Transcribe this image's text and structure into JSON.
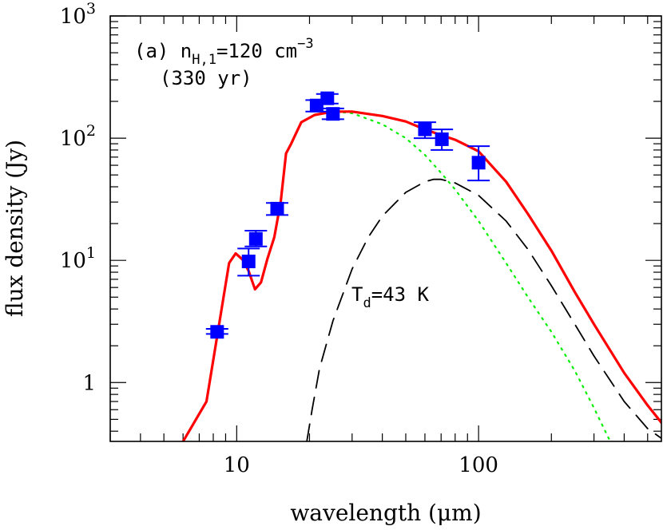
{
  "chart_data": {
    "type": "scatter",
    "xscale": "log",
    "yscale": "log",
    "xlim": [
      3,
      570
    ],
    "ylim": [
      0.33,
      1000
    ],
    "xlabel": "wavelength (μm)",
    "ylabel": "flux density (Jy)",
    "x_ticks": [
      {
        "value": 10,
        "label": "10"
      },
      {
        "value": 100,
        "label": "100"
      }
    ],
    "y_ticks": [
      {
        "value": 1,
        "label": "1"
      },
      {
        "value": 10,
        "label": "10",
        "exp": "1"
      },
      {
        "value": 100,
        "label": "10",
        "exp": "2"
      },
      {
        "value": 1000,
        "label": "10",
        "exp": "3"
      }
    ],
    "annotations": {
      "panel": {
        "prefix": "(a) n",
        "sub": "H,1",
        "mid": "=120 cm",
        "sup": "−3"
      },
      "age": "(330 yr)",
      "dust_temp": {
        "prefix": "T",
        "sub": "d",
        "rest": "=43 K"
      }
    },
    "series": [
      {
        "style": "points",
        "color": "#0000ff",
        "points": [
          {
            "x": 8.3,
            "y": 2.6,
            "ylo": 2.5,
            "yhi": 2.75
          },
          {
            "x": 11.2,
            "y": 9.8,
            "ylo": 7.5,
            "yhi": 12.5
          },
          {
            "x": 12.0,
            "y": 15,
            "ylo": 13,
            "yhi": 17.5
          },
          {
            "x": 14.7,
            "y": 26.5,
            "ylo": 23.5,
            "yhi": 29.5
          },
          {
            "x": 21.4,
            "y": 185,
            "ylo": 165,
            "yhi": 205
          },
          {
            "x": 23.7,
            "y": 212,
            "ylo": 192,
            "yhi": 230
          },
          {
            "x": 25.0,
            "y": 158,
            "ylo": 143,
            "yhi": 175
          },
          {
            "x": 60,
            "y": 118,
            "ylo": 100,
            "yhi": 135
          },
          {
            "x": 70.5,
            "y": 98,
            "ylo": 80,
            "yhi": 118
          },
          {
            "x": 100,
            "y": 63,
            "ylo": 45,
            "yhi": 86
          }
        ]
      },
      {
        "style": "solid",
        "color": "#ff0000",
        "points": [
          [
            6.0,
            0.33
          ],
          [
            7.5,
            0.7
          ],
          [
            8.5,
            3.2
          ],
          [
            9.3,
            9.5
          ],
          [
            9.9,
            11.4
          ],
          [
            10.6,
            10.1
          ],
          [
            11.2,
            8.2
          ],
          [
            11.9,
            5.8
          ],
          [
            12.6,
            6.6
          ],
          [
            13.4,
            10.3
          ],
          [
            14.3,
            15.5
          ],
          [
            15.2,
            30
          ],
          [
            16.0,
            75
          ],
          [
            16.8,
            90
          ],
          [
            18.5,
            135
          ],
          [
            21.0,
            155
          ],
          [
            25.0,
            165
          ],
          [
            30.0,
            165
          ],
          [
            40.0,
            152
          ],
          [
            50.0,
            137
          ],
          [
            60.0,
            118
          ],
          [
            70.0,
            106
          ],
          [
            80.0,
            97
          ],
          [
            100.0,
            78
          ],
          [
            130.0,
            44
          ],
          [
            160.0,
            24
          ],
          [
            200.0,
            12
          ],
          [
            250.0,
            5.5
          ],
          [
            300.0,
            3.0
          ],
          [
            400.0,
            1.2
          ],
          [
            500.0,
            0.65
          ],
          [
            570.0,
            0.47
          ]
        ]
      },
      {
        "style": "dotted",
        "color": "#00ee00",
        "points": [
          [
            6.0,
            0.33
          ],
          [
            7.5,
            0.7
          ],
          [
            8.5,
            3.2
          ],
          [
            9.3,
            9.5
          ],
          [
            9.9,
            11.4
          ],
          [
            10.6,
            10.1
          ],
          [
            11.2,
            8.2
          ],
          [
            11.9,
            5.8
          ],
          [
            12.6,
            6.6
          ],
          [
            13.4,
            10.3
          ],
          [
            14.3,
            15.5
          ],
          [
            15.2,
            30
          ],
          [
            16.0,
            75
          ],
          [
            16.8,
            90
          ],
          [
            18.5,
            135
          ],
          [
            21.0,
            155
          ],
          [
            25.0,
            165
          ],
          [
            30.0,
            160
          ],
          [
            40.0,
            130
          ],
          [
            50.0,
            100
          ],
          [
            60.0,
            73
          ],
          [
            70.0,
            52
          ],
          [
            80.0,
            38
          ],
          [
            100.0,
            21
          ],
          [
            130.0,
            9.5
          ],
          [
            160.0,
            5.0
          ],
          [
            200.0,
            2.6
          ],
          [
            250.0,
            1.25
          ],
          [
            300.0,
            0.62
          ],
          [
            350.0,
            0.33
          ]
        ]
      },
      {
        "style": "dashed",
        "color": "#000000",
        "points": [
          [
            19.5,
            0.33
          ],
          [
            20.5,
            0.6
          ],
          [
            22.0,
            1.3
          ],
          [
            25.0,
            3.2
          ],
          [
            30.0,
            8.5
          ],
          [
            35.0,
            15.5
          ],
          [
            40.0,
            23
          ],
          [
            50.0,
            36
          ],
          [
            60.0,
            44
          ],
          [
            65.0,
            46
          ],
          [
            70.0,
            46
          ],
          [
            80.0,
            43
          ],
          [
            100.0,
            34
          ],
          [
            130.0,
            21
          ],
          [
            160.0,
            12.3
          ],
          [
            200.0,
            6.2
          ],
          [
            250.0,
            3.0
          ],
          [
            300.0,
            1.65
          ],
          [
            400.0,
            0.7
          ],
          [
            500.0,
            0.42
          ],
          [
            570.0,
            0.35
          ]
        ]
      }
    ]
  }
}
